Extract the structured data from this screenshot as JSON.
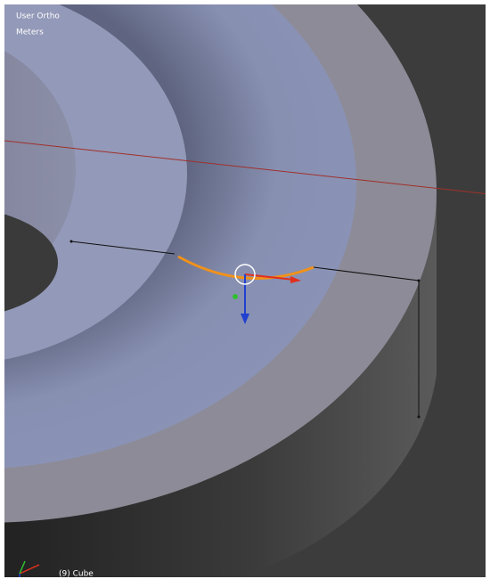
{
  "viewport": {
    "view": "User Ortho",
    "units": "Meters",
    "object": "(9) Cube"
  }
}
